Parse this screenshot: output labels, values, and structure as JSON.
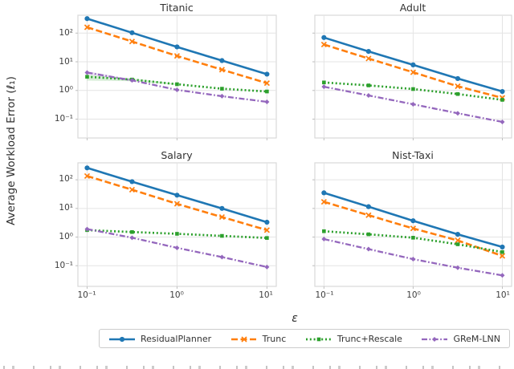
{
  "figure": {
    "ylabel": "Average Workload Error (ℓ₁)",
    "xlabel": "ε",
    "yticks": [
      "10²",
      "10¹",
      "10⁰",
      "10⁻¹"
    ],
    "xticks": [
      "10⁻¹",
      "10⁰",
      "10¹"
    ],
    "ytick_values": [
      100,
      10,
      1,
      0.1
    ],
    "xtick_values": [
      0.1,
      1,
      10
    ],
    "grid": "on",
    "background": "#ffffff",
    "grid_color": "#e4e4e4",
    "spine_color": "#d9d9d9"
  },
  "legend": {
    "position": "bottom-center",
    "items": [
      {
        "label": "ResidualPlanner",
        "color": "#1f77b4",
        "style": "solid-circle"
      },
      {
        "label": "Trunc",
        "color": "#ff7f0e",
        "style": "dashed-x"
      },
      {
        "label": "Trunc+Rescale",
        "color": "#2ca02c",
        "style": "dotted-square"
      },
      {
        "label": "GReM-LNN",
        "color": "#9467bd",
        "style": "dashdot-diamond"
      }
    ]
  },
  "chart_data": [
    {
      "type": "line",
      "title": "Titanic",
      "xscale": "log",
      "yscale": "log",
      "x": [
        0.1,
        0.3162,
        1,
        3.1623,
        10
      ],
      "xlim": [
        0.079,
        12.7
      ],
      "ylim": [
        0.022,
        420
      ],
      "series": [
        {
          "name": "ResidualPlanner",
          "color": "#1f77b4",
          "dash": "solid",
          "marker": "circle",
          "values": [
            320,
            103,
            33,
            11,
            3.7
          ]
        },
        {
          "name": "Trunc",
          "color": "#ff7f0e",
          "dash": "dashed",
          "marker": "x",
          "values": [
            160,
            51,
            16,
            5.3,
            1.8
          ]
        },
        {
          "name": "Trunc+Rescale",
          "color": "#2ca02c",
          "dash": "dotted",
          "marker": "square",
          "values": [
            3.0,
            2.4,
            1.65,
            1.15,
            0.92
          ],
          "band": {
            "x": [
              0.1,
              0.3162,
              1
            ],
            "upper": [
              3.5,
              2.6,
              1.75
            ],
            "lower": [
              2.2,
              2.1,
              1.55
            ]
          }
        },
        {
          "name": "GReM-LNN",
          "color": "#9467bd",
          "dash": "dashdot",
          "marker": "diamond",
          "values": [
            4.2,
            2.25,
            1.05,
            0.63,
            0.4
          ],
          "band": {
            "x": [
              0.1,
              0.3162
            ],
            "upper": [
              4.7,
              2.45
            ],
            "lower": [
              3.7,
              2.05
            ]
          }
        }
      ]
    },
    {
      "type": "line",
      "title": "Adult",
      "xscale": "log",
      "yscale": "log",
      "x": [
        0.1,
        0.3162,
        1,
        3.1623,
        10
      ],
      "xlim": [
        0.079,
        12.7
      ],
      "ylim": [
        0.022,
        420
      ],
      "series": [
        {
          "name": "ResidualPlanner",
          "color": "#1f77b4",
          "dash": "solid",
          "marker": "circle",
          "values": [
            70,
            23,
            7.8,
            2.6,
            0.92
          ]
        },
        {
          "name": "Trunc",
          "color": "#ff7f0e",
          "dash": "dashed",
          "marker": "x",
          "values": [
            40,
            13,
            4.3,
            1.4,
            0.55
          ]
        },
        {
          "name": "Trunc+Rescale",
          "color": "#2ca02c",
          "dash": "dotted",
          "marker": "square",
          "values": [
            1.9,
            1.5,
            1.12,
            0.75,
            0.47
          ]
        },
        {
          "name": "GReM-LNN",
          "color": "#9467bd",
          "dash": "dashdot",
          "marker": "diamond",
          "values": [
            1.35,
            0.67,
            0.33,
            0.16,
            0.08
          ]
        }
      ]
    },
    {
      "type": "line",
      "title": "Salary",
      "xscale": "log",
      "yscale": "log",
      "x": [
        0.1,
        0.3162,
        1,
        3.1623,
        10
      ],
      "xlim": [
        0.079,
        12.7
      ],
      "ylim": [
        0.019,
        390
      ],
      "series": [
        {
          "name": "ResidualPlanner",
          "color": "#1f77b4",
          "dash": "solid",
          "marker": "circle",
          "values": [
            260,
            86,
            29,
            10,
            3.3
          ]
        },
        {
          "name": "Trunc",
          "color": "#ff7f0e",
          "dash": "dashed",
          "marker": "x",
          "values": [
            135,
            45,
            14.5,
            5.0,
            1.75
          ]
        },
        {
          "name": "Trunc+Rescale",
          "color": "#2ca02c",
          "dash": "dotted",
          "marker": "square",
          "values": [
            1.75,
            1.5,
            1.3,
            1.1,
            0.93
          ]
        },
        {
          "name": "GReM-LNN",
          "color": "#9467bd",
          "dash": "dashdot",
          "marker": "diamond",
          "values": [
            1.9,
            0.95,
            0.42,
            0.2,
            0.09
          ]
        }
      ]
    },
    {
      "type": "line",
      "title": "Nist-Taxi",
      "xscale": "log",
      "yscale": "log",
      "x": [
        0.1,
        0.3162,
        1,
        3.1623,
        10
      ],
      "xlim": [
        0.079,
        12.7
      ],
      "ylim": [
        0.019,
        390
      ],
      "series": [
        {
          "name": "ResidualPlanner",
          "color": "#1f77b4",
          "dash": "solid",
          "marker": "circle",
          "values": [
            35,
            11.5,
            3.7,
            1.25,
            0.45
          ]
        },
        {
          "name": "Trunc",
          "color": "#ff7f0e",
          "dash": "dashed",
          "marker": "x",
          "values": [
            17,
            5.8,
            2.0,
            0.76,
            0.22
          ]
        },
        {
          "name": "Trunc+Rescale",
          "color": "#2ca02c",
          "dash": "dotted",
          "marker": "square",
          "values": [
            1.6,
            1.25,
            0.95,
            0.56,
            0.3
          ]
        },
        {
          "name": "GReM-LNN",
          "color": "#9467bd",
          "dash": "dashdot",
          "marker": "diamond",
          "values": [
            0.85,
            0.38,
            0.17,
            0.085,
            0.046
          ]
        }
      ]
    }
  ]
}
